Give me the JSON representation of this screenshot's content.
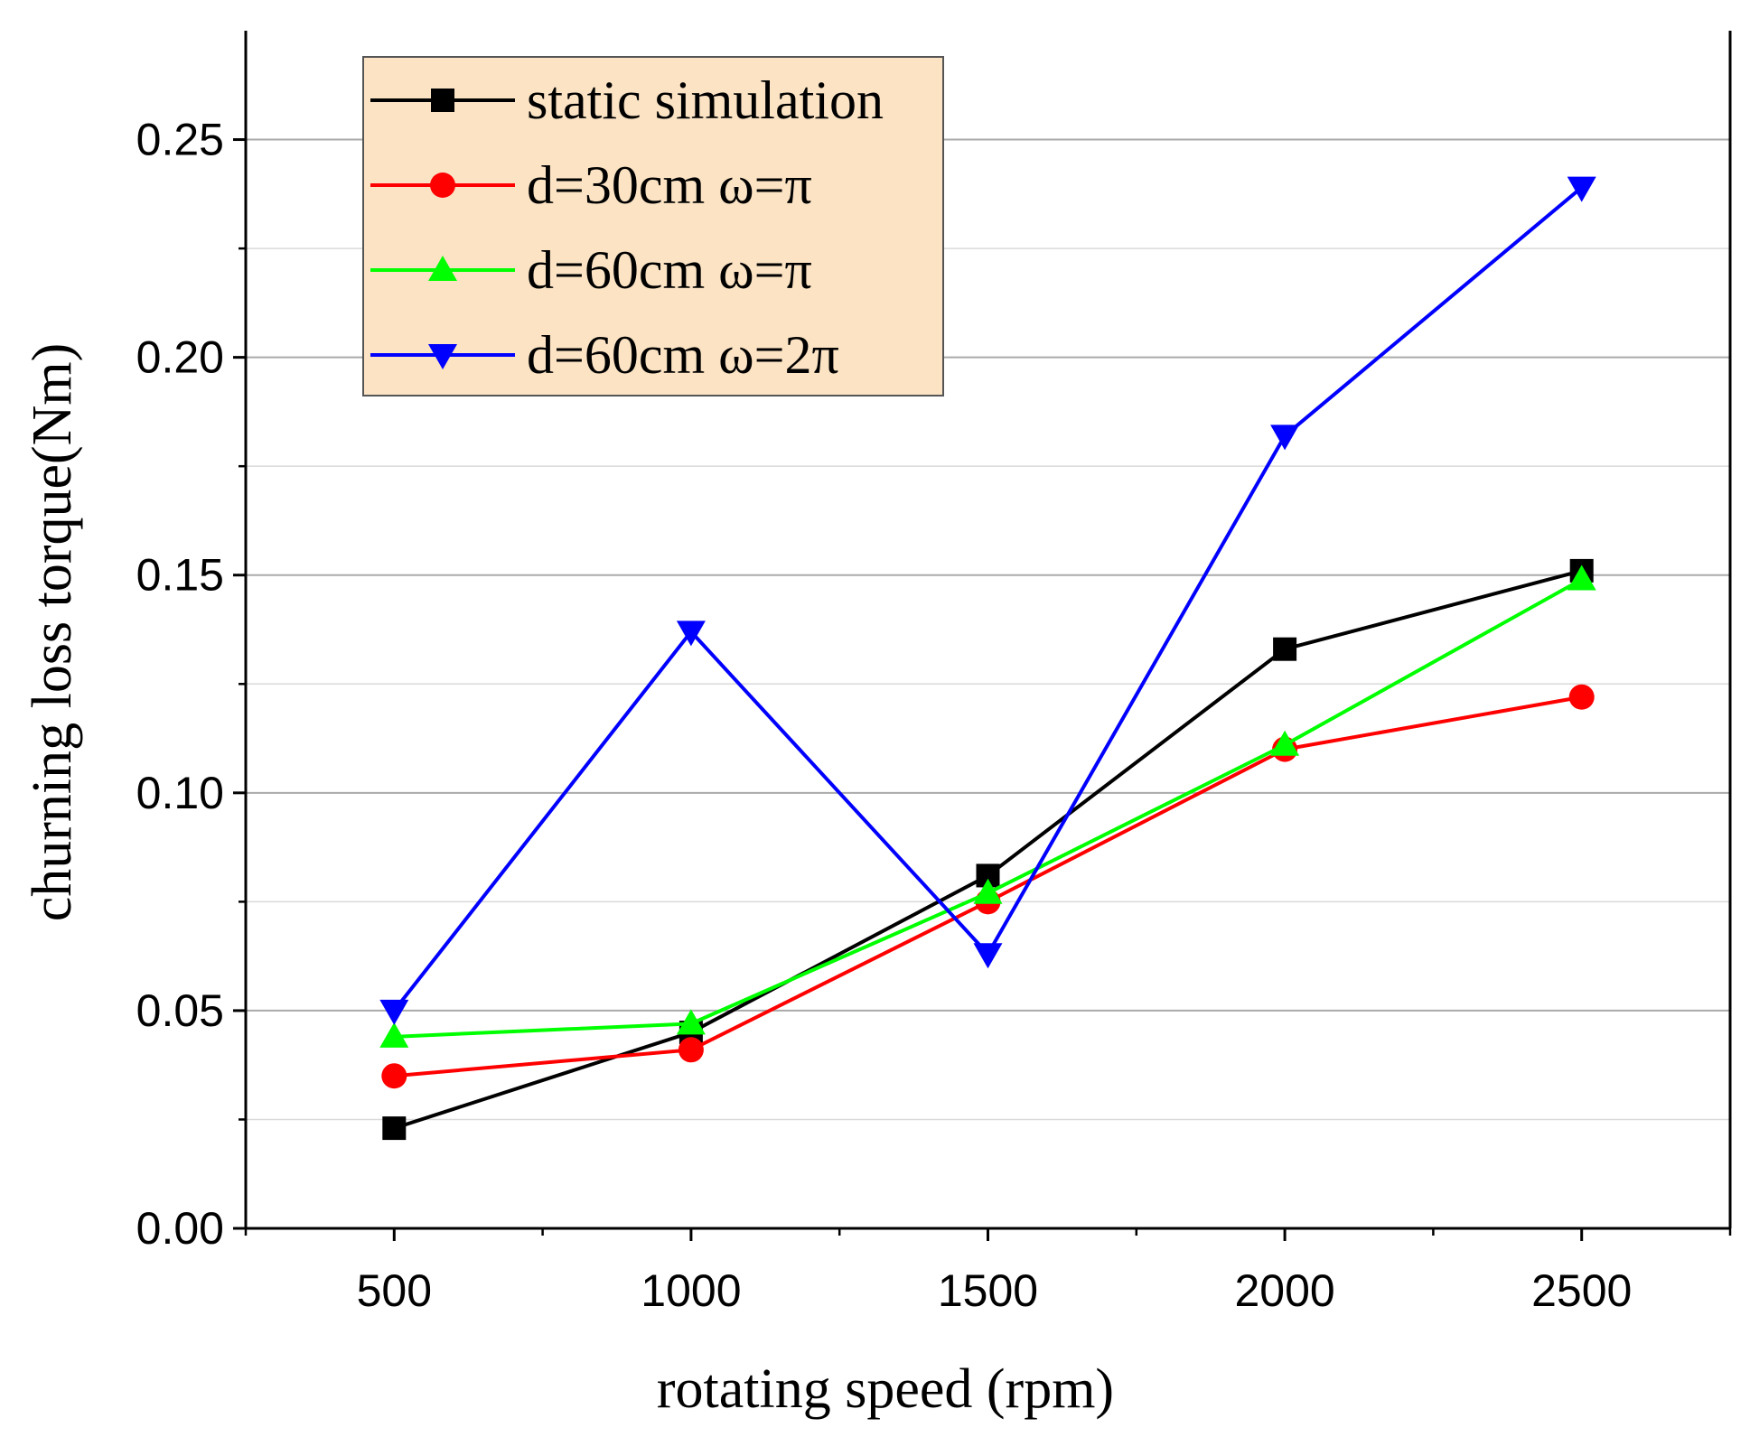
{
  "chart_data": {
    "type": "line",
    "title": "",
    "xlabel": "rotating speed (rpm)",
    "ylabel": "churning loss torque(Nm)",
    "xlim": [
      250,
      2750
    ],
    "ylim": [
      0,
      0.275
    ],
    "x": [
      500,
      1000,
      1500,
      2000,
      2500
    ],
    "x_ticks": [
      500,
      1000,
      1500,
      2000,
      2500
    ],
    "x_tick_labels": [
      "500",
      "1000",
      "1500",
      "2000",
      "2500"
    ],
    "y_ticks": [
      0,
      0.05,
      0.1,
      0.15,
      0.2,
      0.25
    ],
    "y_tick_labels": [
      "0.00",
      "0.05",
      "0.10",
      "0.15",
      "0.20",
      "0.25"
    ],
    "grid": true,
    "legend_position": "top-left",
    "legend_background": "#fbe3c4",
    "series": [
      {
        "name": "static simulation",
        "color": "#000000",
        "marker": "square",
        "values": [
          0.023,
          0.045,
          0.081,
          0.133,
          0.151
        ]
      },
      {
        "name": "d=30cm ω=π",
        "color": "#ff0000",
        "marker": "circle",
        "values": [
          0.035,
          0.041,
          0.075,
          0.11,
          0.122
        ]
      },
      {
        "name": "d=60cm ω=π",
        "color": "#00ff00",
        "marker": "triangle-up",
        "values": [
          0.044,
          0.047,
          0.077,
          0.111,
          0.149
        ]
      },
      {
        "name": "d=60cm ω=2π",
        "color": "#0000ff",
        "marker": "triangle-down",
        "values": [
          0.05,
          0.137,
          0.063,
          0.182,
          0.239
        ]
      }
    ]
  }
}
